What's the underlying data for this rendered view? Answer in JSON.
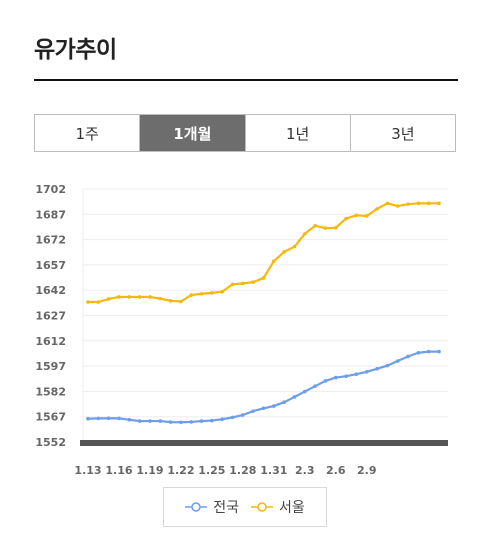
{
  "page": {
    "title": "유가추이"
  },
  "tabs": [
    {
      "label": "1주",
      "active": false
    },
    {
      "label": "1개월",
      "active": true
    },
    {
      "label": "1년",
      "active": false
    },
    {
      "label": "3년",
      "active": false
    }
  ],
  "colors": {
    "national": "#6d9eeb",
    "seoul": "#f5b80f",
    "baseline": "#555555"
  },
  "chart_data": {
    "type": "line",
    "ylim": [
      1552,
      1702
    ],
    "yticks": [
      1702,
      1687,
      1672,
      1657,
      1642,
      1627,
      1612,
      1597,
      1582,
      1567,
      1552
    ],
    "xtick_labels": [
      "1.13",
      "1.16",
      "1.19",
      "1.22",
      "1.25",
      "1.28",
      "1.31",
      "2.3",
      "2.6",
      "2.9"
    ],
    "grid": true,
    "legend_position": "bottom",
    "series": [
      {
        "name": "전국",
        "color": "#6d9eeb",
        "values": [
          1565.8,
          1566.0,
          1566.1,
          1566.0,
          1565.2,
          1564.4,
          1564.4,
          1564.4,
          1563.8,
          1563.7,
          1563.9,
          1564.4,
          1564.7,
          1565.5,
          1566.6,
          1568.0,
          1570.3,
          1572.0,
          1573.3,
          1575.6,
          1578.7,
          1581.9,
          1585.1,
          1588.2,
          1590.2,
          1591.0,
          1592.2,
          1593.6,
          1595.4,
          1597.3,
          1600.0,
          1602.7,
          1604.9,
          1605.6,
          1605.6
        ]
      },
      {
        "name": "서울",
        "color": "#f5b80f",
        "values": [
          1635.0,
          1635.0,
          1636.8,
          1638.0,
          1638.0,
          1638.0,
          1638.0,
          1637.0,
          1635.7,
          1635.3,
          1639.1,
          1639.9,
          1640.4,
          1641.1,
          1645.5,
          1646.0,
          1646.8,
          1649.2,
          1659.2,
          1664.7,
          1667.8,
          1675.4,
          1680.2,
          1678.8,
          1679.0,
          1684.5,
          1686.4,
          1686.0,
          1690.2,
          1693.5,
          1691.9,
          1693.0,
          1693.5,
          1693.5,
          1693.5
        ]
      }
    ]
  }
}
